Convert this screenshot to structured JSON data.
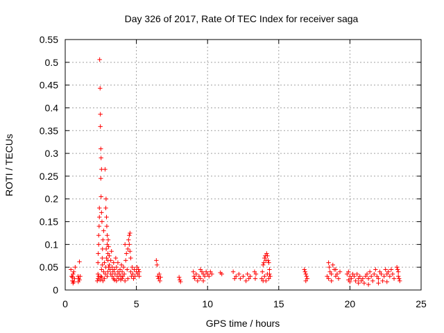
{
  "chart_data": {
    "type": "scatter",
    "title": "Day 326 of 2017, Rate Of TEC Index for receiver saga",
    "xlabel": "GPS time / hours",
    "ylabel": "ROTI / TECUs",
    "xlim": [
      0,
      25
    ],
    "ylim": [
      0,
      0.55
    ],
    "xticks": [
      0,
      5,
      10,
      15,
      20,
      25
    ],
    "yticks": [
      0,
      0.05,
      0.1,
      0.15,
      0.2,
      0.25,
      0.3,
      0.35,
      0.4,
      0.45,
      0.5,
      0.55
    ],
    "xtick_labels": [
      "0",
      "5",
      "10",
      "15",
      "20",
      "25"
    ],
    "ytick_labels": [
      "0",
      "0.05",
      "0.1",
      "0.15",
      "0.2",
      "0.25",
      "0.3",
      "0.35",
      "0.4",
      "0.45",
      "0.5",
      "0.55"
    ],
    "grid": true,
    "marker": "+",
    "color": "#ff0000",
    "series": [
      {
        "name": "ROTI",
        "points": [
          [
            0.4,
            0.045
          ],
          [
            0.45,
            0.03
          ],
          [
            0.5,
            0.02
          ],
          [
            0.55,
            0.015
          ],
          [
            0.6,
            0.04
          ],
          [
            0.65,
            0.025
          ],
          [
            0.7,
            0.05
          ],
          [
            0.55,
            0.035
          ],
          [
            0.5,
            0.028
          ],
          [
            0.6,
            0.018
          ],
          [
            0.9,
            0.03
          ],
          [
            0.95,
            0.025
          ],
          [
            1.0,
            0.022
          ],
          [
            1.0,
            0.062
          ],
          [
            1.05,
            0.03
          ],
          [
            0.92,
            0.018
          ],
          [
            2.25,
            0.02
          ],
          [
            2.3,
            0.035
          ],
          [
            2.3,
            0.06
          ],
          [
            2.32,
            0.08
          ],
          [
            2.35,
            0.1
          ],
          [
            2.35,
            0.12
          ],
          [
            2.38,
            0.14
          ],
          [
            2.4,
            0.16
          ],
          [
            2.4,
            0.18
          ],
          [
            2.42,
            0.506
          ],
          [
            2.45,
            0.443
          ],
          [
            2.47,
            0.386
          ],
          [
            2.47,
            0.359
          ],
          [
            2.5,
            0.31
          ],
          [
            2.52,
            0.29
          ],
          [
            2.55,
            0.265
          ],
          [
            2.5,
            0.245
          ],
          [
            2.52,
            0.205
          ],
          [
            2.55,
            0.17
          ],
          [
            2.58,
            0.15
          ],
          [
            2.5,
            0.03
          ],
          [
            2.55,
            0.045
          ],
          [
            2.6,
            0.055
          ],
          [
            2.6,
            0.07
          ],
          [
            2.62,
            0.09
          ],
          [
            2.65,
            0.11
          ],
          [
            2.7,
            0.13
          ],
          [
            2.7,
            0.04
          ],
          [
            2.75,
            0.06
          ],
          [
            2.75,
            0.025
          ],
          [
            2.8,
            0.265
          ],
          [
            2.85,
            0.18
          ],
          [
            2.87,
            0.2
          ],
          [
            2.9,
            0.16
          ],
          [
            2.92,
            0.14
          ],
          [
            2.95,
            0.12
          ],
          [
            2.95,
            0.1
          ],
          [
            3.0,
            0.08
          ],
          [
            3.0,
            0.065
          ],
          [
            3.05,
            0.05
          ],
          [
            2.82,
            0.035
          ],
          [
            2.85,
            0.05
          ],
          [
            2.9,
            0.07
          ],
          [
            2.88,
            0.09
          ],
          [
            2.95,
            0.03
          ],
          [
            3.0,
            0.04
          ],
          [
            3.02,
            0.11
          ],
          [
            3.05,
            0.095
          ],
          [
            3.1,
            0.075
          ],
          [
            3.1,
            0.055
          ],
          [
            3.15,
            0.045
          ],
          [
            3.2,
            0.035
          ],
          [
            3.2,
            0.065
          ],
          [
            3.25,
            0.085
          ],
          [
            3.3,
            0.05
          ],
          [
            3.3,
            0.03
          ],
          [
            3.35,
            0.04
          ],
          [
            3.4,
            0.06
          ],
          [
            3.4,
            0.025
          ],
          [
            3.45,
            0.045
          ],
          [
            3.5,
            0.035
          ],
          [
            3.55,
            0.07
          ],
          [
            3.6,
            0.05
          ],
          [
            3.65,
            0.03
          ],
          [
            3.7,
            0.04
          ],
          [
            3.7,
            0.06
          ],
          [
            3.75,
            0.025
          ],
          [
            3.8,
            0.035
          ],
          [
            3.85,
            0.045
          ],
          [
            3.9,
            0.03
          ],
          [
            3.95,
            0.055
          ],
          [
            4.0,
            0.04
          ],
          [
            4.0,
            0.025
          ],
          [
            4.05,
            0.03
          ],
          [
            4.1,
            0.05
          ],
          [
            4.15,
            0.035
          ],
          [
            4.2,
            0.1
          ],
          [
            4.25,
            0.065
          ],
          [
            4.3,
            0.08
          ],
          [
            4.35,
            0.045
          ],
          [
            4.4,
            0.09
          ],
          [
            4.45,
            0.11
          ],
          [
            4.5,
            0.12
          ],
          [
            4.5,
            0.1
          ],
          [
            4.55,
            0.125
          ],
          [
            4.55,
            0.085
          ],
          [
            4.6,
            0.07
          ],
          [
            4.6,
            0.04
          ],
          [
            4.65,
            0.03
          ],
          [
            4.7,
            0.05
          ],
          [
            4.75,
            0.035
          ],
          [
            4.8,
            0.025
          ],
          [
            4.85,
            0.045
          ],
          [
            4.9,
            0.03
          ],
          [
            5.0,
            0.04
          ],
          [
            5.05,
            0.05
          ],
          [
            5.1,
            0.035
          ],
          [
            5.15,
            0.045
          ],
          [
            5.2,
            0.03
          ],
          [
            5.2,
            0.04
          ],
          [
            2.3,
            0.025
          ],
          [
            2.35,
            0.03
          ],
          [
            2.45,
            0.022
          ],
          [
            2.55,
            0.028
          ],
          [
            2.65,
            0.02
          ],
          [
            3.45,
            0.022
          ],
          [
            3.6,
            0.02
          ],
          [
            3.9,
            0.022
          ],
          [
            4.2,
            0.02
          ],
          [
            4.4,
            0.025
          ],
          [
            6.4,
            0.065
          ],
          [
            6.45,
            0.055
          ],
          [
            6.5,
            0.03
          ],
          [
            6.55,
            0.025
          ],
          [
            6.6,
            0.035
          ],
          [
            6.65,
            0.02
          ],
          [
            6.7,
            0.028
          ],
          [
            8.0,
            0.028
          ],
          [
            8.05,
            0.022
          ],
          [
            8.1,
            0.018
          ],
          [
            9.0,
            0.04
          ],
          [
            9.05,
            0.03
          ],
          [
            9.1,
            0.025
          ],
          [
            9.2,
            0.035
          ],
          [
            9.3,
            0.02
          ],
          [
            9.4,
            0.03
          ],
          [
            9.5,
            0.025
          ],
          [
            9.6,
            0.04
          ],
          [
            9.7,
            0.035
          ],
          [
            9.8,
            0.03
          ],
          [
            9.9,
            0.04
          ],
          [
            10.0,
            0.035
          ],
          [
            10.1,
            0.03
          ],
          [
            10.2,
            0.04
          ],
          [
            10.3,
            0.035
          ],
          [
            9.5,
            0.045
          ],
          [
            9.7,
            0.02
          ],
          [
            10.9,
            0.038
          ],
          [
            11.0,
            0.035
          ],
          [
            11.8,
            0.04
          ],
          [
            11.9,
            0.025
          ],
          [
            12.0,
            0.03
          ],
          [
            12.2,
            0.035
          ],
          [
            12.3,
            0.025
          ],
          [
            12.5,
            0.03
          ],
          [
            12.7,
            0.02
          ],
          [
            12.8,
            0.035
          ],
          [
            12.9,
            0.025
          ],
          [
            13.0,
            0.03
          ],
          [
            13.3,
            0.04
          ],
          [
            13.35,
            0.025
          ],
          [
            13.4,
            0.035
          ],
          [
            13.8,
            0.025
          ],
          [
            13.85,
            0.04
          ],
          [
            13.9,
            0.055
          ],
          [
            13.95,
            0.06
          ],
          [
            14.0,
            0.07
          ],
          [
            14.05,
            0.075
          ],
          [
            14.1,
            0.065
          ],
          [
            14.15,
            0.08
          ],
          [
            14.2,
            0.075
          ],
          [
            14.25,
            0.065
          ],
          [
            14.3,
            0.06
          ],
          [
            14.35,
            0.045
          ],
          [
            14.4,
            0.03
          ],
          [
            14.0,
            0.03
          ],
          [
            14.1,
            0.02
          ],
          [
            14.2,
            0.035
          ],
          [
            14.3,
            0.025
          ],
          [
            14.35,
            0.035
          ],
          [
            13.9,
            0.02
          ],
          [
            16.8,
            0.045
          ],
          [
            16.85,
            0.04
          ],
          [
            16.9,
            0.035
          ],
          [
            16.95,
            0.03
          ],
          [
            17.0,
            0.025
          ],
          [
            16.9,
            0.02
          ],
          [
            18.4,
            0.03
          ],
          [
            18.5,
            0.06
          ],
          [
            18.55,
            0.05
          ],
          [
            18.6,
            0.04
          ],
          [
            18.7,
            0.035
          ],
          [
            18.8,
            0.055
          ],
          [
            18.9,
            0.045
          ],
          [
            19.0,
            0.03
          ],
          [
            19.1,
            0.035
          ],
          [
            19.2,
            0.025
          ],
          [
            19.3,
            0.04
          ],
          [
            18.5,
            0.025
          ],
          [
            18.7,
            0.02
          ],
          [
            19.0,
            0.045
          ],
          [
            19.8,
            0.035
          ],
          [
            19.9,
            0.04
          ],
          [
            20.0,
            0.03
          ],
          [
            20.1,
            0.025
          ],
          [
            20.2,
            0.035
          ],
          [
            20.3,
            0.03
          ],
          [
            20.4,
            0.02
          ],
          [
            20.5,
            0.035
          ],
          [
            20.6,
            0.025
          ],
          [
            20.7,
            0.03
          ],
          [
            20.8,
            0.02
          ],
          [
            20.9,
            0.025
          ],
          [
            21.0,
            0.015
          ],
          [
            21.1,
            0.03
          ],
          [
            21.2,
            0.035
          ],
          [
            21.3,
            0.025
          ],
          [
            21.4,
            0.04
          ],
          [
            21.5,
            0.03
          ],
          [
            21.6,
            0.02
          ],
          [
            21.7,
            0.035
          ],
          [
            21.8,
            0.045
          ],
          [
            21.9,
            0.03
          ],
          [
            22.0,
            0.025
          ],
          [
            22.1,
            0.04
          ],
          [
            22.2,
            0.035
          ],
          [
            22.3,
            0.02
          ],
          [
            22.4,
            0.03
          ],
          [
            22.5,
            0.045
          ],
          [
            22.6,
            0.035
          ],
          [
            22.7,
            0.04
          ],
          [
            22.8,
            0.03
          ],
          [
            22.9,
            0.045
          ],
          [
            23.0,
            0.035
          ],
          [
            23.1,
            0.025
          ],
          [
            20.0,
            0.018
          ],
          [
            20.6,
            0.015
          ],
          [
            21.3,
            0.012
          ],
          [
            22.0,
            0.015
          ],
          [
            22.6,
            0.018
          ],
          [
            19.9,
            0.022
          ],
          [
            23.3,
            0.05
          ],
          [
            23.35,
            0.045
          ],
          [
            23.4,
            0.03
          ],
          [
            23.45,
            0.025
          ],
          [
            23.5,
            0.02
          ],
          [
            23.4,
            0.04
          ]
        ]
      }
    ]
  }
}
